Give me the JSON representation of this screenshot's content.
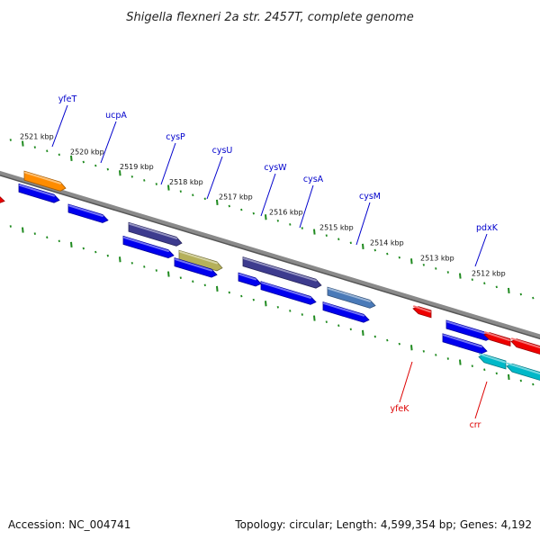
{
  "title": "Shigella flexneri 2a str. 2457T, complete genome",
  "footer": {
    "accession": "Accession: NC_004741",
    "summary": "Topology: circular; Length: 4,599,354 bp; Genes: 4,192"
  },
  "colors": {
    "background": "#ffffff",
    "backbone": "#8a8a8a",
    "tick": "#1f8a1f",
    "forward_label": "#0000cc",
    "reverse_label": "#dd0000"
  },
  "positions_kbp": [
    "2521 kbp",
    "2520 kbp",
    "2519 kbp",
    "2518 kbp",
    "2517 kbp",
    "2516 kbp",
    "2515 kbp",
    "2514 kbp",
    "2513 kbp",
    "2512 kbp"
  ],
  "labels": [
    {
      "name": "yfeT",
      "strand": "forward"
    },
    {
      "name": "ucpA",
      "strand": "forward"
    },
    {
      "name": "cysP",
      "strand": "forward"
    },
    {
      "name": "cysU",
      "strand": "forward"
    },
    {
      "name": "cysW",
      "strand": "forward"
    },
    {
      "name": "cysA",
      "strand": "forward"
    },
    {
      "name": "cysM",
      "strand": "forward"
    },
    {
      "name": "pdxK",
      "strand": "forward"
    },
    {
      "name": "yfeK",
      "strand": "reverse"
    },
    {
      "name": "crr",
      "strand": "reverse"
    }
  ],
  "features": [
    {
      "type": "gene",
      "strand": "forward",
      "color": "#ff8c00"
    },
    {
      "type": "cds",
      "strand": "forward",
      "color": "#0000ee"
    },
    {
      "type": "cds",
      "strand": "forward",
      "color": "#0000ee"
    },
    {
      "type": "gene",
      "strand": "forward",
      "color": "#3d3b8e"
    },
    {
      "type": "gene",
      "strand": "forward",
      "color": "#b5b05a"
    },
    {
      "type": "cds",
      "strand": "forward",
      "color": "#0000ee"
    },
    {
      "type": "cds",
      "strand": "forward",
      "color": "#0000ee"
    },
    {
      "type": "gene",
      "strand": "forward",
      "color": "#3d3b8e"
    },
    {
      "type": "cds",
      "strand": "forward",
      "color": "#0000ee"
    },
    {
      "type": "cds",
      "strand": "forward",
      "color": "#0000ee"
    },
    {
      "type": "gene",
      "strand": "forward",
      "color": "#4a7ab8"
    },
    {
      "type": "cds",
      "strand": "forward",
      "color": "#0000ee"
    },
    {
      "type": "gene",
      "strand": "forward",
      "color": "#0000ee"
    },
    {
      "type": "cds",
      "strand": "forward",
      "color": "#0000ee"
    },
    {
      "type": "gene",
      "strand": "reverse",
      "color": "#ee0000"
    },
    {
      "type": "cds",
      "strand": "reverse",
      "color": "#ee0000"
    },
    {
      "type": "gene",
      "strand": "reverse",
      "color": "#ee0000"
    },
    {
      "type": "gene",
      "strand": "reverse",
      "color": "#00b8c8"
    },
    {
      "type": "cds",
      "strand": "reverse",
      "color": "#00b8c8"
    },
    {
      "type": "cds",
      "strand": "forward",
      "color": "#ee0000"
    }
  ]
}
